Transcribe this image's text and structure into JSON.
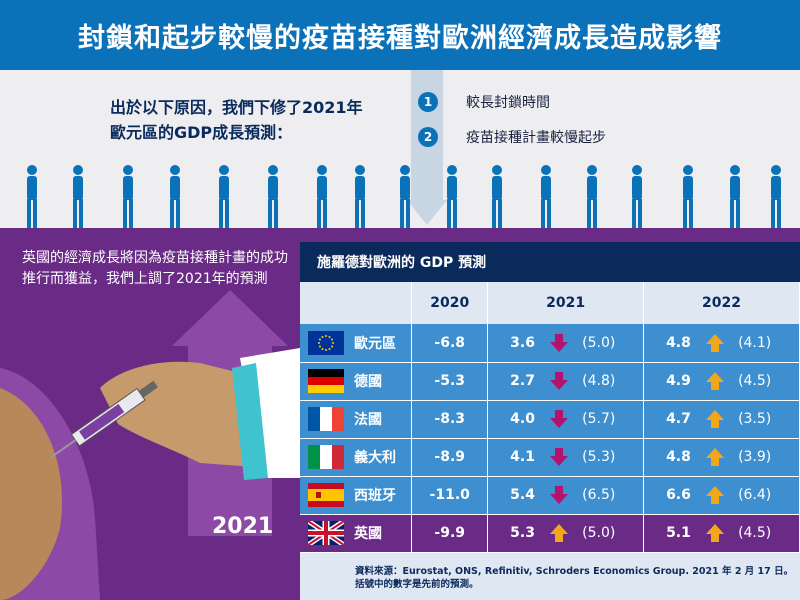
{
  "title": "封鎖和起步較慢的疫苗接種對歐洲經濟成長造成影響",
  "intro": {
    "line1": "出於以下原因，我們下修了2021年",
    "line2": "歐元區的GDP成長預測："
  },
  "reasons": [
    {
      "num": "1",
      "text": "較長封鎖時間"
    },
    {
      "num": "2",
      "text": "疫苗接種計畫較慢起步"
    }
  ],
  "left_text": "英國的經濟成長將因為疫苗接種計畫的成功推行而獲益，我們上調了2021年的預測",
  "year_label": "2021",
  "colors": {
    "blue": "#0b72b9",
    "navy": "#0b2a5c",
    "purple": "#6a2b86",
    "row_blue": "#3d8fd0",
    "down": "#b3126f",
    "up": "#f2a71b"
  },
  "chart_data": {
    "type": "table",
    "title": "施羅德對歐洲的 GDP 預測",
    "columns": [
      "",
      "2020",
      "2021",
      "2022"
    ],
    "rows": [
      {
        "flag": "eu-flag-icon",
        "country": "歐元區",
        "v2020": "-6.8",
        "v2021": "3.6",
        "dir2021": "down",
        "prev2021": "(5.0)",
        "v2022": "4.8",
        "dir2022": "up",
        "prev2022": "(4.1)"
      },
      {
        "flag": "germany-flag-icon",
        "country": "德國",
        "v2020": "-5.3",
        "v2021": "2.7",
        "dir2021": "down",
        "prev2021": "(4.8)",
        "v2022": "4.9",
        "dir2022": "up",
        "prev2022": "(4.5)"
      },
      {
        "flag": "france-flag-icon",
        "country": "法國",
        "v2020": "-8.3",
        "v2021": "4.0",
        "dir2021": "down",
        "prev2021": "(5.7)",
        "v2022": "4.7",
        "dir2022": "up",
        "prev2022": "(3.5)"
      },
      {
        "flag": "italy-flag-icon",
        "country": "義大利",
        "v2020": "-8.9",
        "v2021": "4.1",
        "dir2021": "down",
        "prev2021": "(5.3)",
        "v2022": "4.8",
        "dir2022": "up",
        "prev2022": "(3.9)"
      },
      {
        "flag": "spain-flag-icon",
        "country": "西班牙",
        "v2020": "-11.0",
        "v2021": "5.4",
        "dir2021": "down",
        "prev2021": "(6.5)",
        "v2022": "6.6",
        "dir2022": "up",
        "prev2022": "(6.4)"
      },
      {
        "flag": "uk-flag-icon",
        "country": "英國",
        "v2020": "-9.9",
        "v2021": "5.3",
        "dir2021": "up",
        "prev2021": "(5.0)",
        "v2022": "5.1",
        "dir2022": "up",
        "prev2022": "(4.5)"
      }
    ]
  },
  "source_line1": "資料來源：Eurostat, ONS, Refinitiv, Schroders Economics Group. 2021 年 2 月 17 日。",
  "source_line2": "括號中的數字是先前的預測。"
}
